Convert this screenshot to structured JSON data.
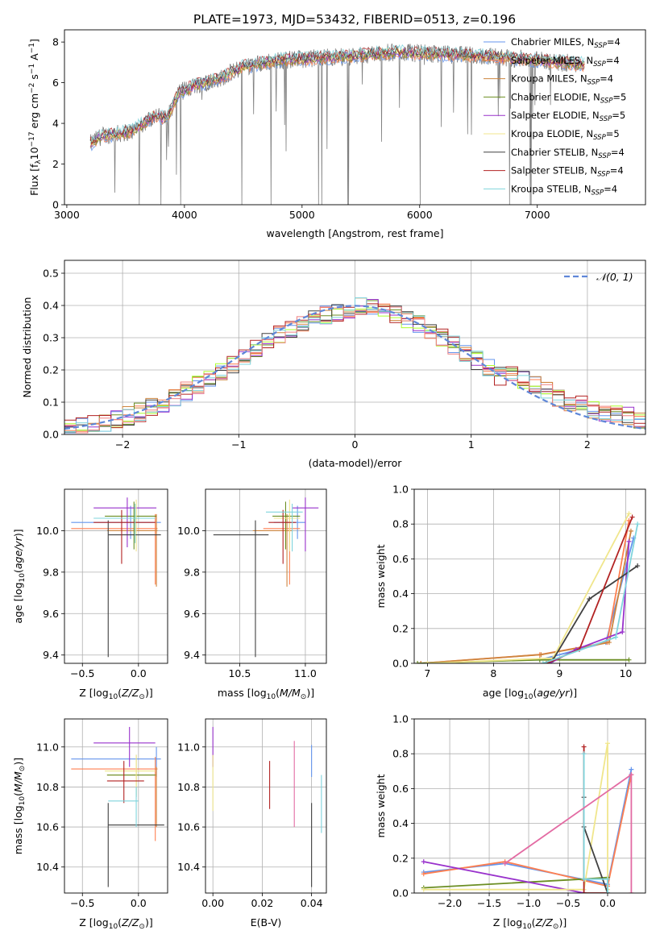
{
  "figure_title": "PLATE=1973, MJD=53432, FIBERID=0513, z=0.196",
  "colors": {
    "ChabrierMILES": "#6495ed",
    "SalpeterMILES": "#ff7f50",
    "KroupaMILES": "#cd853f",
    "ChabrierELODIE": "#6b8e23",
    "SalpeterELODIE": "#9932cc",
    "KroupaELODIE": "#f0e68c",
    "ChabrierSTELIB": "#404040",
    "SalpeterSTELIB": "#b22222",
    "KroupaSTELIB": "#7fd4dc",
    "ELODIEhist": "#adff2f",
    "STELIBhist": "#f08080",
    "pinkline": "#e36ba3",
    "spectrum": "#808080",
    "gaussian": "#5f87d8"
  },
  "legend_spectrum": [
    {
      "name": "Chabrier MILES, N",
      "sub": "SSP",
      "tail": "=4",
      "color": "ChabrierMILES"
    },
    {
      "name": "Salpeter MILES, N",
      "sub": "SSP",
      "tail": "=4",
      "color": "SalpeterMILES"
    },
    {
      "name": "Kroupa MILES, N",
      "sub": "SSP",
      "tail": "=4",
      "color": "KroupaMILES"
    },
    {
      "name": "Chabrier ELODIE, N",
      "sub": "SSP",
      "tail": "=5",
      "color": "ChabrierELODIE"
    },
    {
      "name": "Salpeter ELODIE, N",
      "sub": "SSP",
      "tail": "=5",
      "color": "SalpeterELODIE"
    },
    {
      "name": "Kroupa ELODIE, N",
      "sub": "SSP",
      "tail": "=5",
      "color": "KroupaELODIE"
    },
    {
      "name": "Chabrier STELIB, N",
      "sub": "SSP",
      "tail": "=4",
      "color": "ChabrierSTELIB"
    },
    {
      "name": "Salpeter STELIB, N",
      "sub": "SSP",
      "tail": "=4",
      "color": "SalpeterSTELIB"
    },
    {
      "name": "Kroupa STELIB, N",
      "sub": "SSP",
      "tail": "=4",
      "color": "KroupaSTELIB"
    }
  ],
  "chart_data": [
    {
      "id": "spectrum",
      "type": "line",
      "xlabel": "wavelength [Angstrom, rest frame]",
      "ylabel": "Flux [f_λ 10^-17 erg cm^-2 s^-1 A^-1]",
      "xlim": [
        2980,
        7920
      ],
      "ylim": [
        0,
        8.6
      ],
      "xticks": [
        3000,
        4000,
        5000,
        6000,
        7000
      ],
      "yticks": [
        0,
        2,
        4,
        6,
        8
      ],
      "grid": false,
      "legend": "top-right",
      "x_range": [
        3200,
        7400
      ],
      "profile": [
        [
          3200,
          3.0
        ],
        [
          3300,
          3.4
        ],
        [
          3450,
          3.5
        ],
        [
          3550,
          3.6
        ],
        [
          3650,
          4.0
        ],
        [
          3750,
          4.4
        ],
        [
          3850,
          4.2
        ],
        [
          3950,
          5.5
        ],
        [
          4100,
          5.9
        ],
        [
          4300,
          6.2
        ],
        [
          4500,
          6.8
        ],
        [
          4800,
          7.1
        ],
        [
          5100,
          7.2
        ],
        [
          5400,
          7.3
        ],
        [
          5800,
          7.5
        ],
        [
          6200,
          7.4
        ],
        [
          6600,
          7.3
        ],
        [
          7000,
          7.1
        ],
        [
          7400,
          6.9
        ]
      ]
    },
    {
      "id": "residuals",
      "type": "histogram",
      "xlabel": "(data-model)/error",
      "ylabel": "Normed distribution",
      "xlim": [
        -2.5,
        2.5
      ],
      "ylim": [
        0,
        0.54
      ],
      "xticks": [
        -2,
        -1,
        0,
        1,
        2
      ],
      "yticks": [
        0.0,
        0.1,
        0.2,
        0.3,
        0.4,
        0.5
      ],
      "grid": true,
      "legend": "top-right",
      "gaussian_label": "𝒩(0, 1)",
      "bin_width": 0.1,
      "series_colors": [
        "ChabrierMILES",
        "SalpeterMILES",
        "KroupaMILES",
        "ChabrierELODIE",
        "SalpeterELODIE",
        "ELODIEhist",
        "ChabrierSTELIB",
        "SalpeterSTELIB",
        "KroupaSTELIB",
        "STELIBhist"
      ]
    },
    {
      "id": "age_vs_Z",
      "type": "errorbar",
      "xlabel": "Z [log10(Z/Z⊙)]",
      "ylabel": "age  [log10(age/yr)]",
      "xlim": [
        -0.66,
        0.26
      ],
      "ylim": [
        9.36,
        10.2
      ],
      "xticks": [
        -0.5,
        0.0
      ],
      "yticks": [
        9.4,
        9.6,
        9.8,
        10.0
      ],
      "grid": true,
      "points": [
        {
          "series": "ChabrierMILES",
          "x": -0.07,
          "y": 10.04,
          "xl": -0.6,
          "xh": 0.2,
          "yl": 9.96,
          "yh": 10.12
        },
        {
          "series": "SalpeterMILES",
          "x": 0.15,
          "y": 10.01,
          "xl": -0.6,
          "xh": 0.17,
          "yl": 9.74,
          "yh": 10.08
        },
        {
          "series": "KroupaMILES",
          "x": 0.16,
          "y": 10.0,
          "xl": -0.28,
          "xh": 0.17,
          "yl": 9.73,
          "yh": 10.08
        },
        {
          "series": "ChabrierELODIE",
          "x": -0.04,
          "y": 10.07,
          "xl": -0.3,
          "xh": 0.16,
          "yl": 9.91,
          "yh": 10.14
        },
        {
          "series": "SalpeterELODIE",
          "x": -0.1,
          "y": 10.11,
          "xl": -0.4,
          "xh": 0.16,
          "yl": 9.92,
          "yh": 10.16
        },
        {
          "series": "KroupaELODIE",
          "x": -0.02,
          "y": 10.06,
          "xl": -0.3,
          "xh": 0.15,
          "yl": 9.9,
          "yh": 10.15
        },
        {
          "series": "ChabrierSTELIB",
          "x": -0.27,
          "y": 9.98,
          "xl": -0.27,
          "xh": 0.2,
          "yl": 9.39,
          "yh": 10.05
        },
        {
          "series": "SalpeterSTELIB",
          "x": -0.15,
          "y": 10.04,
          "xl": -0.4,
          "xh": 0.15,
          "yl": 9.84,
          "yh": 10.1
        },
        {
          "series": "KroupaSTELIB",
          "x": -0.03,
          "y": 10.06,
          "xl": -0.4,
          "xh": 0.15,
          "yl": 9.94,
          "yh": 10.13
        }
      ]
    },
    {
      "id": "age_vs_mass",
      "type": "errorbar",
      "xlabel": "mass [log10(M/M⊙)]",
      "ylabel": "",
      "xlim": [
        10.24,
        11.16
      ],
      "ylim": [
        9.36,
        10.2
      ],
      "xticks": [
        10.5,
        11.0
      ],
      "yticks": [
        9.4,
        9.6,
        9.8,
        10.0
      ],
      "grid": true,
      "points": [
        {
          "series": "ChabrierMILES",
          "x": 10.94,
          "y": 10.04,
          "xl": 10.76,
          "xh": 11.0,
          "yl": 9.96,
          "yh": 10.12
        },
        {
          "series": "SalpeterMILES",
          "x": 10.88,
          "y": 10.01,
          "xl": 10.68,
          "xh": 10.96,
          "yl": 9.74,
          "yh": 10.08
        },
        {
          "series": "KroupaMILES",
          "x": 10.86,
          "y": 10.0,
          "xl": 10.6,
          "xh": 10.9,
          "yl": 9.73,
          "yh": 10.08
        },
        {
          "series": "ChabrierELODIE",
          "x": 10.85,
          "y": 10.07,
          "xl": 10.75,
          "xh": 10.96,
          "yl": 9.91,
          "yh": 10.14
        },
        {
          "series": "SalpeterELODIE",
          "x": 11.0,
          "y": 10.11,
          "xl": 10.9,
          "xh": 11.1,
          "yl": 9.9,
          "yh": 10.16
        },
        {
          "series": "KroupaELODIE",
          "x": 10.88,
          "y": 10.06,
          "xl": 10.76,
          "xh": 10.96,
          "yl": 9.9,
          "yh": 10.15
        },
        {
          "series": "ChabrierSTELIB",
          "x": 10.62,
          "y": 9.98,
          "xl": 10.3,
          "xh": 10.72,
          "yl": 9.39,
          "yh": 10.05
        },
        {
          "series": "SalpeterSTELIB",
          "x": 10.83,
          "y": 10.04,
          "xl": 10.72,
          "xh": 10.93,
          "yl": 9.84,
          "yh": 10.1
        },
        {
          "series": "KroupaSTELIB",
          "x": 10.9,
          "y": 10.09,
          "xl": 10.7,
          "xh": 10.98,
          "yl": 9.9,
          "yh": 10.13
        }
      ]
    },
    {
      "id": "massweight_vs_age",
      "type": "line",
      "xlabel": "age  [log10(age/yr)]",
      "ylabel": "mass weight",
      "xlim": [
        6.8,
        10.3
      ],
      "ylim": [
        0.0,
        1.0
      ],
      "xticks": [
        7,
        8,
        9,
        10
      ],
      "yticks": [
        0.0,
        0.2,
        0.4,
        0.6,
        0.8,
        1.0
      ],
      "grid": true,
      "series": [
        {
          "series": "ChabrierMILES",
          "x": [
            8.7,
            9.7,
            10.12
          ],
          "y": [
            0.02,
            0.12,
            0.72
          ]
        },
        {
          "series": "SalpeterMILES",
          "x": [
            6.9,
            8.7,
            9.72,
            10.05
          ],
          "y": [
            0.0,
            0.05,
            0.12,
            0.82
          ]
        },
        {
          "series": "KroupaMILES",
          "x": [
            6.9,
            8.72,
            9.75,
            10.08
          ],
          "y": [
            0.0,
            0.05,
            0.12,
            0.76
          ]
        },
        {
          "series": "ChabrierELODIE",
          "x": [
            6.85,
            8.7,
            10.05
          ],
          "y": [
            0.0,
            0.02,
            0.02
          ]
        },
        {
          "series": "SalpeterELODIE",
          "x": [
            8.85,
            9.25,
            9.95,
            10.05
          ],
          "y": [
            0.0,
            0.08,
            0.18,
            0.7
          ]
        },
        {
          "series": "KroupaELODIE",
          "x": [
            7.0,
            8.9,
            10.05
          ],
          "y": [
            0.0,
            0.03,
            0.86
          ]
        },
        {
          "series": "ChabrierSTELIB",
          "x": [
            8.9,
            9.45,
            10.18
          ],
          "y": [
            0.02,
            0.37,
            0.56
          ]
        },
        {
          "series": "SalpeterSTELIB",
          "x": [
            8.8,
            9.3,
            10.1
          ],
          "y": [
            0.0,
            0.08,
            0.84
          ]
        },
        {
          "series": "KroupaSTELIB",
          "x": [
            8.75,
            9.85,
            10.18
          ],
          "y": [
            0.0,
            0.15,
            0.8
          ]
        }
      ]
    },
    {
      "id": "mass_vs_Z",
      "type": "errorbar",
      "xlabel": "Z [log10(Z/Z⊙)]",
      "ylabel": "mass [log10(M/M⊙)]",
      "xlim": [
        -0.66,
        0.26
      ],
      "ylim": [
        10.27,
        11.14
      ],
      "xticks": [
        -0.5,
        0.0
      ],
      "yticks": [
        10.4,
        10.6,
        10.8,
        11.0
      ],
      "grid": true,
      "points": [
        {
          "series": "ChabrierMILES",
          "x": 0.16,
          "y": 10.94,
          "xl": -0.6,
          "xh": 0.2,
          "yl": 10.85,
          "yh": 11.0
        },
        {
          "series": "SalpeterMILES",
          "x": 0.15,
          "y": 10.89,
          "xl": -0.6,
          "xh": 0.17,
          "yl": 10.53,
          "yh": 10.95
        },
        {
          "series": "KroupaMILES",
          "x": 0.16,
          "y": 10.86,
          "xl": -0.28,
          "xh": 0.16,
          "yl": 10.6,
          "yh": 10.9
        },
        {
          "series": "ChabrierELODIE",
          "x": -0.02,
          "y": 10.86,
          "xl": -0.28,
          "xh": 0.15,
          "yl": 10.75,
          "yh": 10.96
        },
        {
          "series": "SalpeterELODIE",
          "x": -0.08,
          "y": 11.02,
          "xl": -0.4,
          "xh": 0.15,
          "yl": 10.9,
          "yh": 11.1
        },
        {
          "series": "KroupaELODIE",
          "x": -0.02,
          "y": 10.88,
          "xl": -0.3,
          "xh": 0.15,
          "yl": 10.76,
          "yh": 10.96
        },
        {
          "series": "ChabrierSTELIB",
          "x": -0.27,
          "y": 10.61,
          "xl": -0.27,
          "xh": 0.23,
          "yl": 10.3,
          "yh": 10.72
        },
        {
          "series": "SalpeterSTELIB",
          "x": -0.13,
          "y": 10.83,
          "xl": -0.28,
          "xh": 0.05,
          "yl": 10.72,
          "yh": 10.93
        },
        {
          "series": "KroupaSTELIB",
          "x": -0.02,
          "y": 10.73,
          "xl": -0.27,
          "xh": 0.0,
          "yl": 10.6,
          "yh": 10.8
        }
      ]
    },
    {
      "id": "mass_vs_ebv",
      "type": "errorbar",
      "xlabel": "E(B-V)",
      "ylabel": "",
      "xlim": [
        -0.003,
        0.046
      ],
      "ylim": [
        10.27,
        11.14
      ],
      "xticks": [
        0.0,
        0.02,
        0.04
      ],
      "yticks": [
        10.4,
        10.6,
        10.8,
        11.0
      ],
      "grid": true,
      "points": [
        {
          "series": "ChabrierMILES",
          "x": 0.04,
          "y": 10.94,
          "yl": 10.85,
          "yh": 11.01
        },
        {
          "series": "SalpeterELODIE",
          "x": 0.0,
          "y": 11.02,
          "yl": 10.9,
          "yh": 11.1
        },
        {
          "series": "KroupaELODIE",
          "x": 0.0,
          "y": 10.88,
          "yl": 10.68,
          "yh": 10.96
        },
        {
          "series": "ChabrierSTELIB",
          "x": 0.04,
          "y": 10.61,
          "yl": 10.3,
          "yh": 10.72
        },
        {
          "series": "SalpeterSTELIB",
          "x": 0.023,
          "y": 10.83,
          "yl": 10.69,
          "yh": 10.93
        },
        {
          "series": "pinkline",
          "x": 0.033,
          "y": 10.85,
          "yl": 10.6,
          "yh": 11.03
        },
        {
          "series": "KroupaSTELIB",
          "x": 0.044,
          "y": 10.73,
          "yl": 10.57,
          "yh": 10.86
        }
      ]
    },
    {
      "id": "massweight_vs_Z",
      "type": "line",
      "xlabel": "Z [log10(Z/Z⊙)]",
      "ylabel": "mass weight",
      "xlim": [
        -2.45,
        0.48
      ],
      "ylim": [
        0.0,
        1.0
      ],
      "xticks": [
        -2.0,
        -1.5,
        -1.0,
        -0.5,
        0.0
      ],
      "yticks": [
        0.0,
        0.2,
        0.4,
        0.6,
        0.8,
        1.0
      ],
      "grid": true,
      "series": [
        {
          "series": "ChabrierMILES",
          "x": [
            -2.33,
            -1.3,
            0.0,
            0.3
          ],
          "y": [
            0.12,
            0.17,
            0.05,
            0.71
          ]
        },
        {
          "series": "SalpeterMILES",
          "x": [
            -2.33,
            -1.3,
            0.0,
            0.3
          ],
          "y": [
            0.11,
            0.18,
            0.04,
            0.68
          ]
        },
        {
          "series": "ChabrierELODIE",
          "x": [
            -2.33,
            -0.3,
            0.0
          ],
          "y": [
            0.03,
            0.08,
            0.09
          ]
        },
        {
          "series": "SalpeterELODIE",
          "x": [
            -2.33,
            -0.3,
            -0.3
          ],
          "y": [
            0.18,
            0.0,
            0.0
          ]
        },
        {
          "series": "KroupaELODIE",
          "x": [
            -2.33,
            -0.3,
            0.0,
            0.0
          ],
          "y": [
            0.02,
            0.02,
            0.86,
            0.02
          ]
        },
        {
          "series": "ChabrierSTELIB",
          "x": [
            -0.3,
            -0.3,
            0.0
          ],
          "y": [
            0.55,
            0.38,
            0.0
          ]
        },
        {
          "series": "SalpeterSTELIB",
          "x": [
            -0.3,
            -0.3,
            0.0
          ],
          "y": [
            0.84,
            0.0,
            0.0
          ]
        },
        {
          "series": "KroupaSTELIB",
          "x": [
            -0.3,
            -0.3,
            0.0,
            0.0
          ],
          "y": [
            0.8,
            0.08,
            0.08,
            0.0
          ]
        },
        {
          "series": "pinkline",
          "x": [
            -1.3,
            0.3,
            0.3
          ],
          "y": [
            0.17,
            0.68,
            0.0
          ]
        }
      ]
    }
  ]
}
